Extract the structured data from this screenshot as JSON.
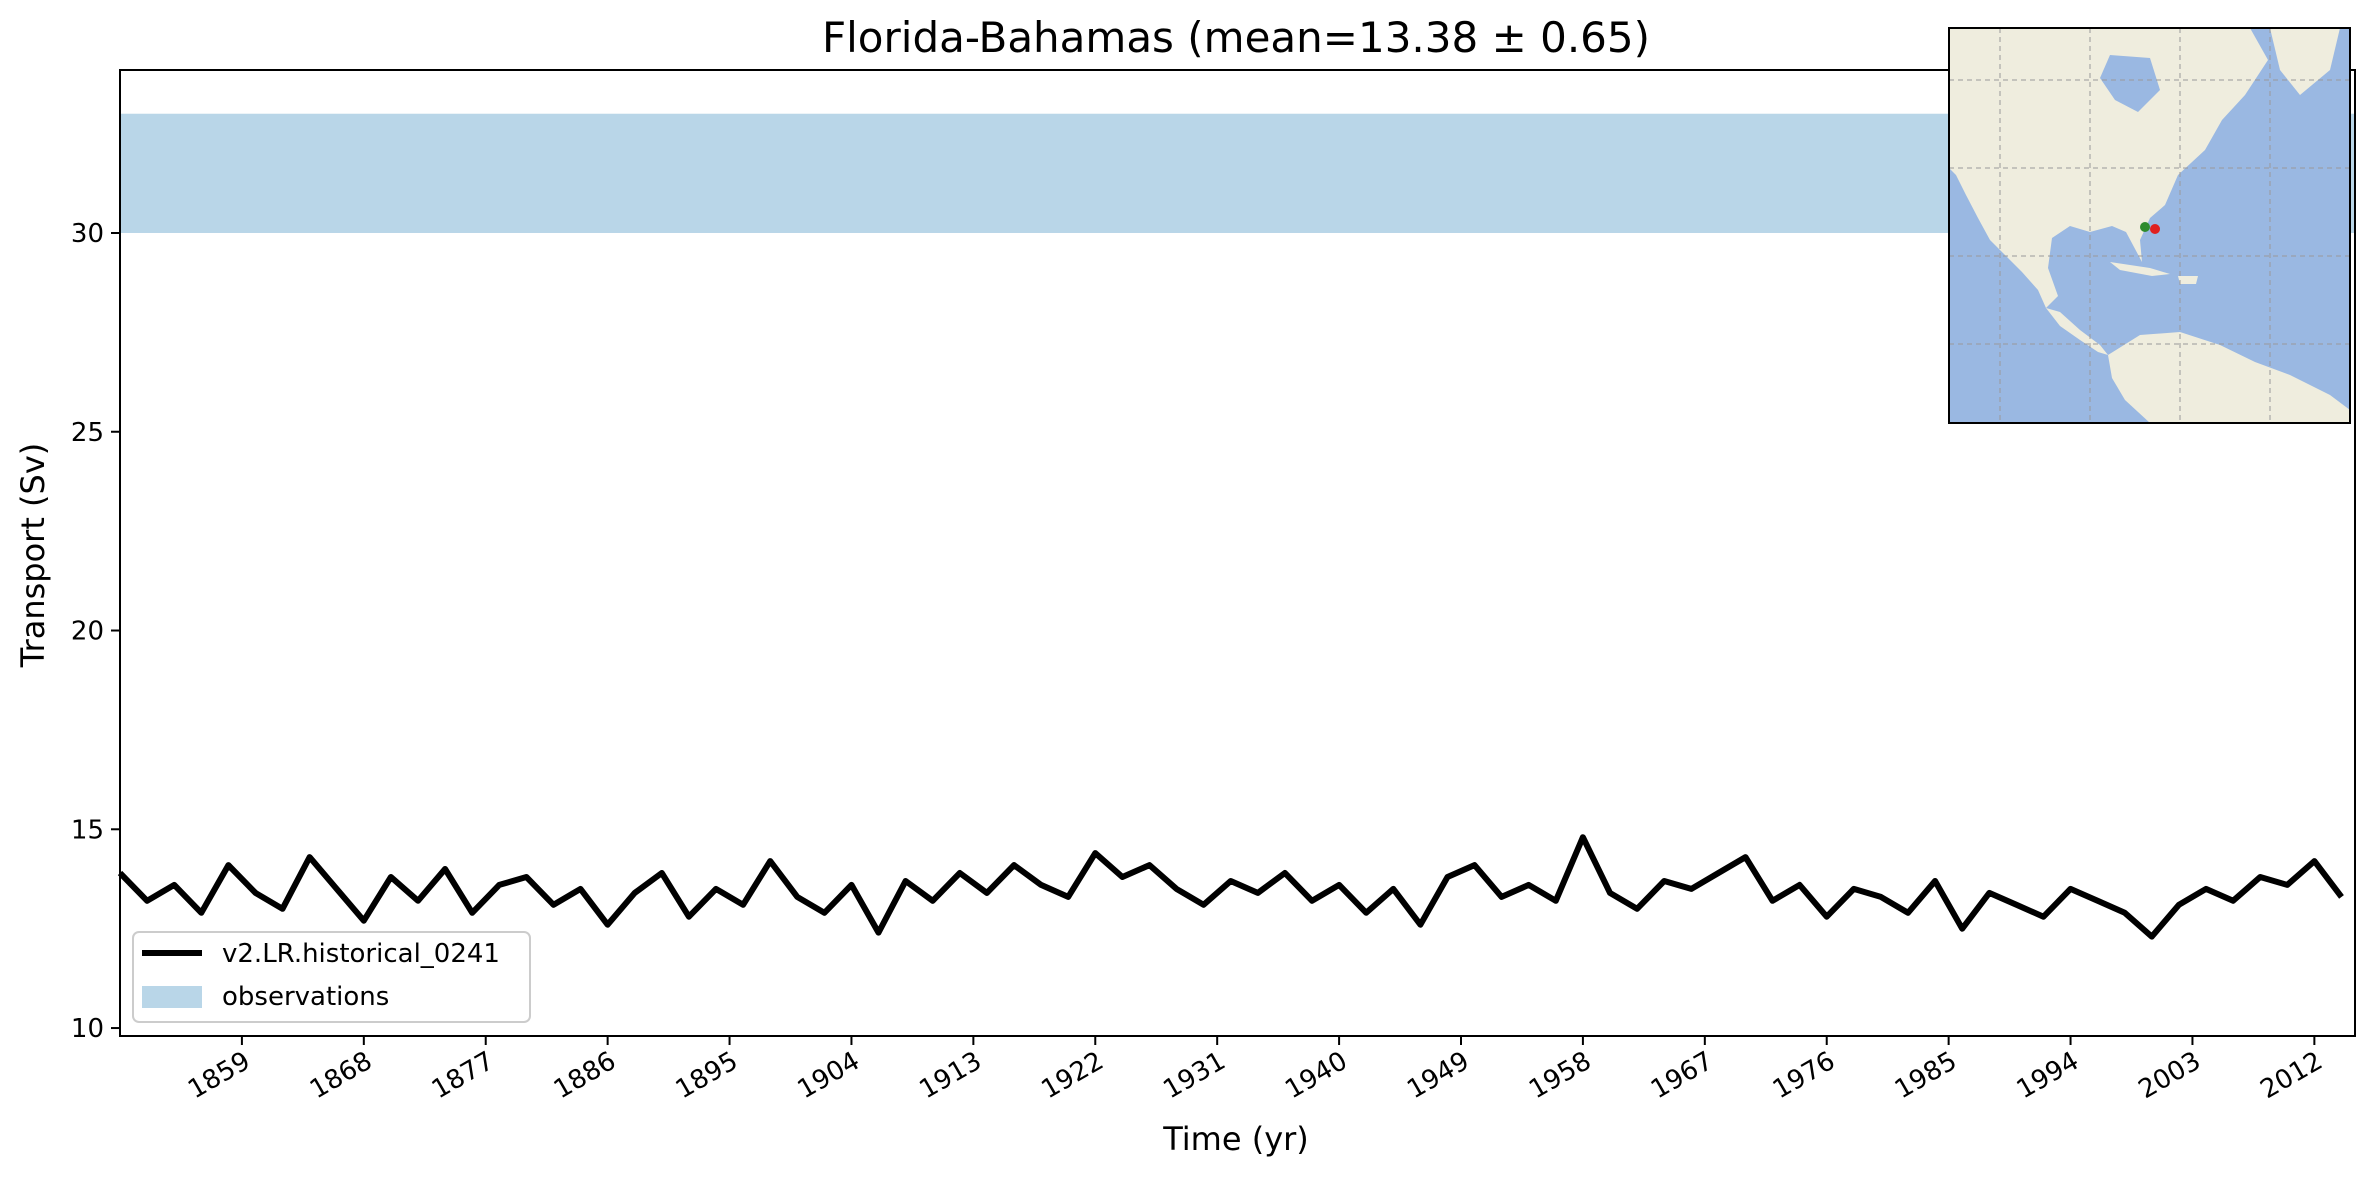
{
  "chart_data": {
    "type": "line",
    "title": "Florida-Bahamas (mean=13.38 ± 0.65)",
    "xlabel": "Time (yr)",
    "ylabel": "Transport (Sv)",
    "xlim": [
      1850,
      2015
    ],
    "ylim": [
      9.8,
      34.1
    ],
    "yticks": [
      10,
      15,
      20,
      25,
      30
    ],
    "xticks": [
      1859,
      1868,
      1877,
      1886,
      1895,
      1904,
      1913,
      1922,
      1931,
      1940,
      1949,
      1958,
      1967,
      1976,
      1985,
      1994,
      2003,
      2012
    ],
    "grid": false,
    "legend_position": "lower-left",
    "observations_band": {
      "name": "observations",
      "y_low": 30.0,
      "y_high": 33.0,
      "color": "#b9d6e8"
    },
    "series": [
      {
        "name": "v2.LR.historical_0241",
        "color": "#000000",
        "x": [
          1850,
          1852,
          1854,
          1856,
          1858,
          1860,
          1862,
          1864,
          1866,
          1868,
          1870,
          1872,
          1874,
          1876,
          1878,
          1880,
          1882,
          1884,
          1886,
          1888,
          1890,
          1892,
          1894,
          1896,
          1898,
          1900,
          1902,
          1904,
          1906,
          1908,
          1910,
          1912,
          1914,
          1916,
          1918,
          1920,
          1922,
          1924,
          1926,
          1928,
          1930,
          1932,
          1934,
          1936,
          1938,
          1940,
          1942,
          1944,
          1946,
          1948,
          1950,
          1952,
          1954,
          1956,
          1958,
          1960,
          1962,
          1964,
          1966,
          1968,
          1970,
          1972,
          1974,
          1976,
          1978,
          1980,
          1982,
          1984,
          1986,
          1988,
          1990,
          1992,
          1994,
          1996,
          1998,
          2000,
          2002,
          2004,
          2006,
          2008,
          2010,
          2012,
          2014
        ],
        "values": [
          13.9,
          13.2,
          13.6,
          12.9,
          14.1,
          13.4,
          13.0,
          14.3,
          13.5,
          12.7,
          13.8,
          13.2,
          14.0,
          12.9,
          13.6,
          13.8,
          13.1,
          13.5,
          12.6,
          13.4,
          13.9,
          12.8,
          13.5,
          13.1,
          14.2,
          13.3,
          12.9,
          13.6,
          12.4,
          13.7,
          13.2,
          13.9,
          13.4,
          14.1,
          13.6,
          13.3,
          14.4,
          13.8,
          14.1,
          13.5,
          13.1,
          13.7,
          13.4,
          13.9,
          13.2,
          13.6,
          12.9,
          13.5,
          12.6,
          13.8,
          14.1,
          13.3,
          13.6,
          13.2,
          14.8,
          13.4,
          13.0,
          13.7,
          13.5,
          13.9,
          14.3,
          13.2,
          13.6,
          12.8,
          13.5,
          13.3,
          12.9,
          13.7,
          12.5,
          13.4,
          13.1,
          12.8,
          13.5,
          13.2,
          12.9,
          12.3,
          13.1,
          13.5,
          13.2,
          13.8,
          13.6,
          14.2,
          13.3
        ]
      }
    ]
  },
  "inset_map": {
    "description_label": "",
    "ocean_color": "#9ab8e2",
    "land_color": "#efedde",
    "markers": [
      {
        "name": "section-start",
        "color": "#2e8b2e"
      },
      {
        "name": "section-end",
        "color": "#e02020"
      }
    ]
  }
}
